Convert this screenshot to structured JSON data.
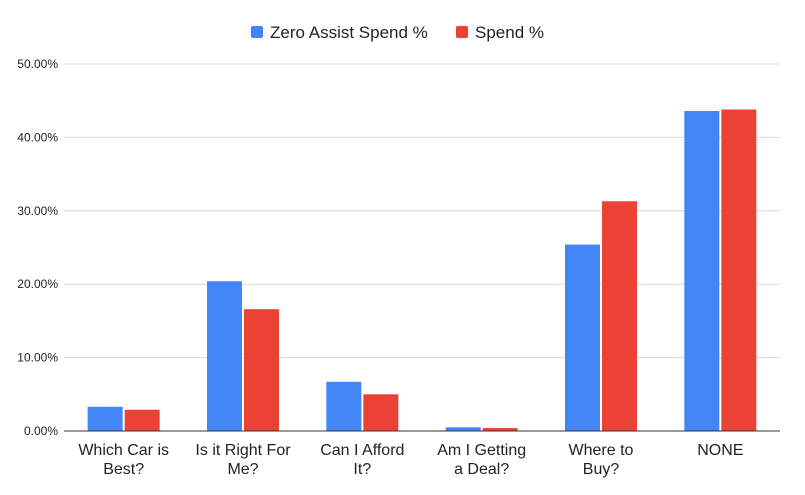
{
  "chart_data": {
    "type": "bar",
    "categories": [
      [
        "Which Car is",
        "Best?"
      ],
      [
        "Is it Right For",
        "Me?"
      ],
      [
        "Can I Afford",
        "It?"
      ],
      [
        "Am I Getting",
        "a Deal?"
      ],
      [
        "Where to",
        "Buy?"
      ],
      [
        "NONE"
      ]
    ],
    "series": [
      {
        "name": "Zero Assist Spend %",
        "color": "#4285f4",
        "values": [
          3.3,
          20.4,
          6.7,
          0.5,
          25.4,
          43.6
        ]
      },
      {
        "name": "Spend %",
        "color": "#ea4335",
        "values": [
          2.9,
          16.6,
          5.0,
          0.4,
          31.3,
          43.8
        ]
      }
    ],
    "ylim": [
      0,
      50
    ],
    "yticks": [
      0,
      10,
      20,
      30,
      40,
      50
    ],
    "ytick_labels": [
      "0.00%",
      "10.00%",
      "20.00%",
      "30.00%",
      "40.00%",
      "50.00%"
    ],
    "grid": true,
    "legend_position": "top-center",
    "title": "",
    "xlabel": "",
    "ylabel": ""
  }
}
